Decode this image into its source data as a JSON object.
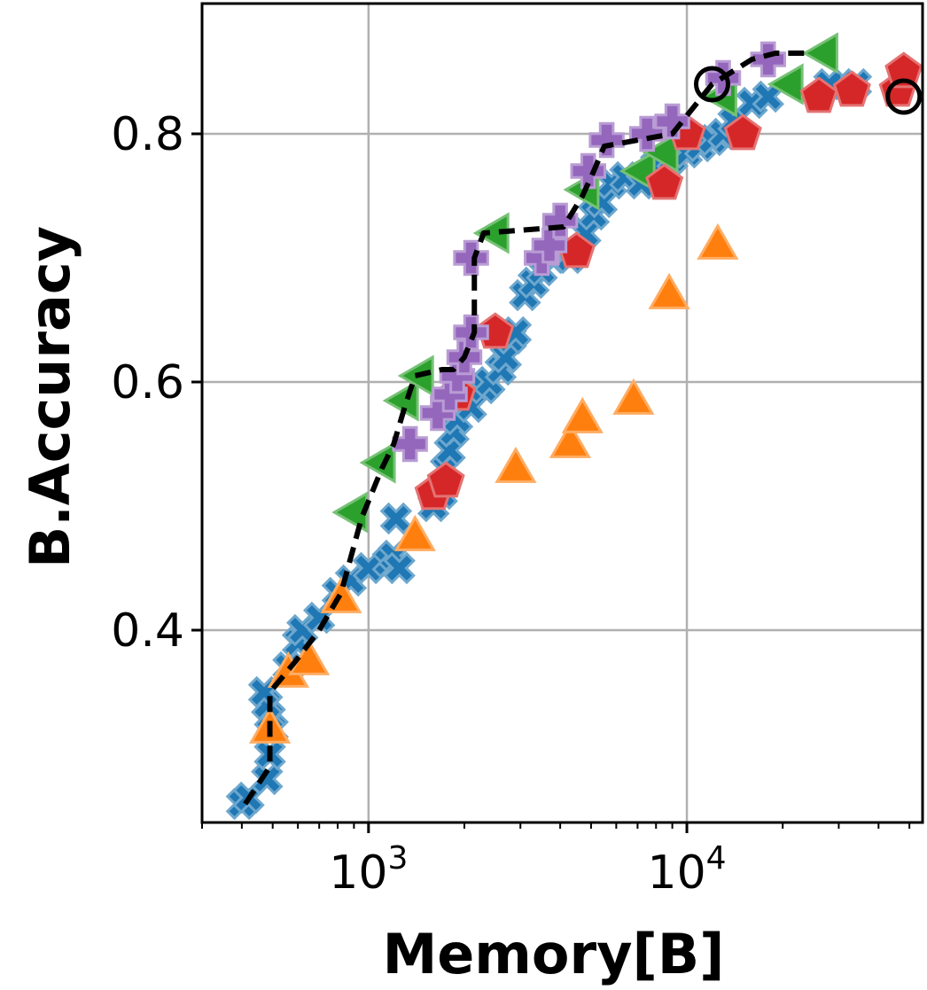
{
  "chart_data": {
    "type": "scatter",
    "title": "",
    "xlabel": "Memory[B]",
    "ylabel": "B.Accuracy",
    "xscale": "log",
    "xlim": [
      300,
      55000
    ],
    "ylim": [
      0.245,
      0.905
    ],
    "grid": true,
    "xticks": [
      {
        "value": 1000,
        "base": "10",
        "exp": "3"
      },
      {
        "value": 10000,
        "base": "10",
        "exp": "4"
      }
    ],
    "yticks": [
      {
        "value": 0.4,
        "label": "0.4"
      },
      {
        "value": 0.6,
        "label": "0.6"
      },
      {
        "value": 0.8,
        "label": "0.8"
      }
    ],
    "series": [
      {
        "color": "#1f77b4",
        "marker": "x",
        "points": [
          [
            400,
            0.26
          ],
          [
            420,
            0.265
          ],
          [
            480,
            0.28
          ],
          [
            490,
            0.3
          ],
          [
            500,
            0.32
          ],
          [
            490,
            0.33
          ],
          [
            480,
            0.34
          ],
          [
            470,
            0.35
          ],
          [
            560,
            0.37
          ],
          [
            600,
            0.39
          ],
          [
            620,
            0.4
          ],
          [
            700,
            0.41
          ],
          [
            800,
            0.43
          ],
          [
            880,
            0.44
          ],
          [
            1000,
            0.45
          ],
          [
            1150,
            0.455
          ],
          [
            1200,
            0.46
          ],
          [
            1250,
            0.45
          ],
          [
            1220,
            0.49
          ],
          [
            1600,
            0.5
          ],
          [
            1700,
            0.51
          ],
          [
            1750,
            0.53
          ],
          [
            1800,
            0.545
          ],
          [
            1850,
            0.56
          ],
          [
            1900,
            0.57
          ],
          [
            2100,
            0.58
          ],
          [
            2300,
            0.595
          ],
          [
            2400,
            0.6
          ],
          [
            2600,
            0.61
          ],
          [
            2700,
            0.62
          ],
          [
            2800,
            0.635
          ],
          [
            2900,
            0.64
          ],
          [
            3100,
            0.67
          ],
          [
            3300,
            0.68
          ],
          [
            3500,
            0.69
          ],
          [
            3800,
            0.7
          ],
          [
            4300,
            0.7
          ],
          [
            4800,
            0.72
          ],
          [
            5100,
            0.735
          ],
          [
            5400,
            0.745
          ],
          [
            5800,
            0.76
          ],
          [
            6400,
            0.765
          ],
          [
            7200,
            0.76
          ],
          [
            8000,
            0.775
          ],
          [
            9000,
            0.78
          ],
          [
            10000,
            0.785
          ],
          [
            11000,
            0.79
          ],
          [
            12000,
            0.795
          ],
          [
            13000,
            0.8
          ],
          [
            14000,
            0.81
          ],
          [
            16000,
            0.825
          ],
          [
            18000,
            0.83
          ],
          [
            28000,
            0.84
          ],
          [
            34000,
            0.84
          ]
        ]
      },
      {
        "color": "#ff7f0e",
        "marker": "triangle-up",
        "points": [
          [
            490,
            0.32
          ],
          [
            560,
            0.365
          ],
          [
            650,
            0.375
          ],
          [
            820,
            0.425
          ],
          [
            1400,
            0.475
          ],
          [
            2900,
            0.53
          ],
          [
            4300,
            0.55
          ],
          [
            4700,
            0.57
          ],
          [
            6800,
            0.585
          ],
          [
            8800,
            0.67
          ],
          [
            12500,
            0.71
          ]
        ]
      },
      {
        "color": "#2ca02c",
        "marker": "triangle-left",
        "points": [
          [
            900,
            0.495
          ],
          [
            1100,
            0.535
          ],
          [
            1300,
            0.585
          ],
          [
            1450,
            0.605
          ],
          [
            2500,
            0.72
          ],
          [
            4800,
            0.755
          ],
          [
            7200,
            0.77
          ],
          [
            8500,
            0.785
          ],
          [
            13000,
            0.83
          ],
          [
            21000,
            0.84
          ],
          [
            27000,
            0.865
          ]
        ]
      },
      {
        "color": "#d62728",
        "marker": "pentagon",
        "points": [
          [
            1600,
            0.51
          ],
          [
            1750,
            0.52
          ],
          [
            1900,
            0.59
          ],
          [
            2500,
            0.64
          ],
          [
            4500,
            0.705
          ],
          [
            8500,
            0.76
          ],
          [
            10000,
            0.8
          ],
          [
            15000,
            0.8
          ],
          [
            26000,
            0.83
          ],
          [
            33000,
            0.835
          ],
          [
            46000,
            0.835
          ],
          [
            48000,
            0.85
          ]
        ]
      },
      {
        "color": "#9467bd",
        "marker": "plus",
        "points": [
          [
            1350,
            0.55
          ],
          [
            1650,
            0.575
          ],
          [
            1800,
            0.59
          ],
          [
            1900,
            0.605
          ],
          [
            2000,
            0.62
          ],
          [
            2100,
            0.64
          ],
          [
            2100,
            0.7
          ],
          [
            3500,
            0.7
          ],
          [
            3700,
            0.71
          ],
          [
            4000,
            0.73
          ],
          [
            4900,
            0.77
          ],
          [
            5600,
            0.795
          ],
          [
            7500,
            0.8
          ],
          [
            9000,
            0.81
          ],
          [
            13000,
            0.845
          ],
          [
            18000,
            0.86
          ]
        ]
      }
    ],
    "frontier": {
      "color": "#000000",
      "style": "dashed",
      "points": [
        [
          410,
          0.26
        ],
        [
          490,
          0.29
        ],
        [
          490,
          0.35
        ],
        [
          590,
          0.375
        ],
        [
          700,
          0.4
        ],
        [
          820,
          0.43
        ],
        [
          950,
          0.49
        ],
        [
          1100,
          0.53
        ],
        [
          1200,
          0.55
        ],
        [
          1300,
          0.58
        ],
        [
          1400,
          0.605
        ],
        [
          1700,
          0.61
        ],
        [
          1850,
          0.61
        ],
        [
          2000,
          0.62
        ],
        [
          2150,
          0.64
        ],
        [
          2150,
          0.7
        ],
        [
          2300,
          0.72
        ],
        [
          4100,
          0.725
        ],
        [
          4700,
          0.75
        ],
        [
          5100,
          0.77
        ],
        [
          5500,
          0.79
        ],
        [
          9000,
          0.8
        ],
        [
          12000,
          0.84
        ],
        [
          16000,
          0.86
        ],
        [
          19000,
          0.865
        ],
        [
          24000,
          0.865
        ]
      ]
    },
    "highlight_points": [
      {
        "x": 12000,
        "y": 0.84
      },
      {
        "x": 48000,
        "y": 0.83
      }
    ]
  }
}
